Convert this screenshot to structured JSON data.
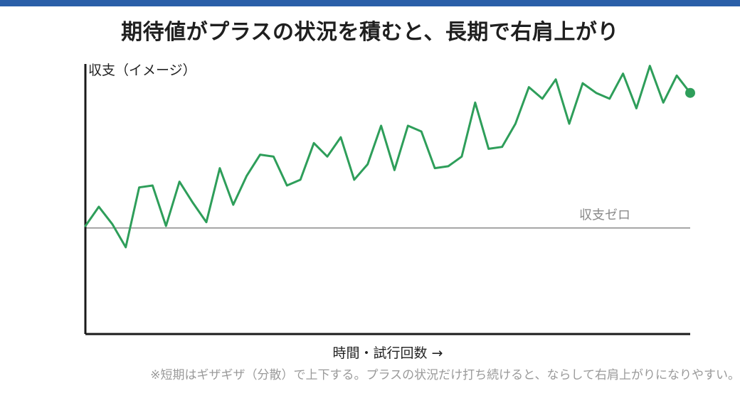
{
  "title": "期待値がプラスの状況を積むと、長期で右肩上がり",
  "footnote": "※短期はギザギザ（分散）で上下する。プラスの状況だけ打ち続けると、ならして右肩上がりになりやすい。",
  "colors": {
    "header_bar": "#2b5fa8",
    "line": "#2e9e5a",
    "axis": "#1a1a1a",
    "zero_line": "#8a8a8a"
  },
  "chart_data": {
    "type": "line",
    "title": "期待値がプラスの状況を積むと、長期で右肩上がり",
    "ylabel": "収支（イメージ）",
    "xlabel": "時間・試行回数 →",
    "zero_label": "収支ゼロ",
    "grid": false,
    "ylim": [
      -0.55,
      0.85
    ],
    "xlim": [
      0,
      45
    ],
    "x": [
      0,
      1,
      2,
      3,
      4,
      5,
      6,
      7,
      8,
      9,
      10,
      11,
      12,
      13,
      14,
      15,
      16,
      17,
      18,
      19,
      20,
      21,
      22,
      23,
      24,
      25,
      26,
      27,
      28,
      29,
      30,
      31,
      32,
      33,
      34,
      35,
      36,
      37,
      38,
      39,
      40,
      41,
      42,
      43,
      44,
      45
    ],
    "values": [
      0.01,
      0.11,
      0.02,
      -0.1,
      0.21,
      0.22,
      0.01,
      0.24,
      0.13,
      0.03,
      0.31,
      0.12,
      0.27,
      0.38,
      0.37,
      0.22,
      0.25,
      0.44,
      0.37,
      0.47,
      0.25,
      0.33,
      0.53,
      0.3,
      0.53,
      0.5,
      0.31,
      0.32,
      0.37,
      0.65,
      0.41,
      0.42,
      0.54,
      0.73,
      0.67,
      0.77,
      0.54,
      0.75,
      0.7,
      0.67,
      0.8,
      0.62,
      0.84,
      0.65,
      0.79,
      0.7
    ]
  }
}
